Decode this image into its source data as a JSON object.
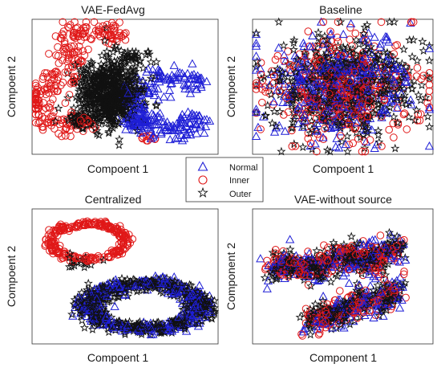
{
  "legend": {
    "placement": "center",
    "entries": [
      {
        "label": "Normal",
        "marker": "triangle",
        "color": "#1f1fd6"
      },
      {
        "label": "Inner",
        "marker": "circle",
        "color": "#e01818"
      },
      {
        "label": "Outer",
        "marker": "star",
        "color": "#111111"
      }
    ]
  },
  "chart_data": [
    {
      "type": "scatter",
      "title": "VAE-FedAvg",
      "xlabel": "Compoent 1",
      "ylabel": "Compoent 2",
      "grid": false,
      "series": [
        {
          "name": "Normal",
          "color": "#1f1fd6",
          "marker": "triangle",
          "clusters": [
            {
              "shape": "arc",
              "cx": 0.74,
              "cy": 0.38,
              "r": 0.2,
              "t0": 0.55,
              "t1": 5.75,
              "spread": 0.045,
              "n": 240
            },
            {
              "shape": "blob",
              "cx": 0.57,
              "cy": 0.24,
              "rx": 0.09,
              "ry": 0.05,
              "n": 40
            }
          ]
        },
        {
          "name": "Inner",
          "color": "#e01818",
          "marker": "circle",
          "clusters": [
            {
              "shape": "arc",
              "cx": 0.34,
              "cy": 0.8,
              "r": 0.15,
              "t0": 0.15,
              "t1": 4.2,
              "spread": 0.045,
              "n": 120
            },
            {
              "shape": "arc",
              "cx": 0.18,
              "cy": 0.38,
              "r": 0.17,
              "t0": 1.2,
              "t1": 5.5,
              "spread": 0.045,
              "n": 150
            },
            {
              "shape": "blob",
              "cx": 0.62,
              "cy": 0.12,
              "rx": 0.05,
              "ry": 0.03,
              "n": 10
            }
          ]
        },
        {
          "name": "Outer",
          "color": "#111111",
          "marker": "star",
          "clusters": [
            {
              "shape": "blob",
              "cx": 0.42,
              "cy": 0.45,
              "rx": 0.17,
              "ry": 0.25,
              "n": 650
            },
            {
              "shape": "blob",
              "cx": 0.25,
              "cy": 0.25,
              "rx": 0.07,
              "ry": 0.06,
              "n": 40
            },
            {
              "shape": "blob",
              "cx": 0.55,
              "cy": 0.72,
              "rx": 0.1,
              "ry": 0.06,
              "n": 30
            }
          ]
        }
      ]
    },
    {
      "type": "scatter",
      "title": "Baseline",
      "xlabel": "Compoent 1",
      "ylabel": "Compoent 2",
      "grid": false,
      "series": [
        {
          "name": "Normal",
          "color": "#1f1fd6",
          "marker": "triangle",
          "clusters": [
            {
              "shape": "blob",
              "cx": 0.5,
              "cy": 0.5,
              "rx": 0.4,
              "ry": 0.38,
              "n": 380
            }
          ]
        },
        {
          "name": "Inner",
          "color": "#e01818",
          "marker": "circle",
          "clusters": [
            {
              "shape": "blob",
              "cx": 0.5,
              "cy": 0.5,
              "rx": 0.4,
              "ry": 0.38,
              "n": 380
            }
          ]
        },
        {
          "name": "Outer",
          "color": "#111111",
          "marker": "star",
          "clusters": [
            {
              "shape": "blob",
              "cx": 0.5,
              "cy": 0.5,
              "rx": 0.41,
              "ry": 0.39,
              "n": 520
            }
          ]
        }
      ]
    },
    {
      "type": "scatter",
      "title": "Centralized",
      "xlabel": "Compoent 1",
      "ylabel": "Compoent 2",
      "grid": false,
      "series": [
        {
          "name": "Normal",
          "color": "#1f1fd6",
          "marker": "triangle",
          "clusters": [
            {
              "shape": "ring",
              "cx": 0.6,
              "cy": 0.28,
              "rx": 0.3,
              "ry": 0.17,
              "spread": 0.07,
              "n": 330
            }
          ]
        },
        {
          "name": "Inner",
          "color": "#e01818",
          "marker": "circle",
          "clusters": [
            {
              "shape": "ring",
              "cx": 0.3,
              "cy": 0.76,
              "rx": 0.2,
              "ry": 0.13,
              "spread": 0.045,
              "n": 260
            }
          ]
        },
        {
          "name": "Outer",
          "color": "#111111",
          "marker": "star",
          "clusters": [
            {
              "shape": "ring",
              "cx": 0.6,
              "cy": 0.28,
              "rx": 0.3,
              "ry": 0.17,
              "spread": 0.075,
              "n": 560
            },
            {
              "shape": "blob",
              "cx": 0.26,
              "cy": 0.6,
              "rx": 0.1,
              "ry": 0.06,
              "n": 18
            }
          ]
        }
      ]
    },
    {
      "type": "scatter",
      "title": "VAE-without source",
      "xlabel": "Component 1",
      "ylabel": "Component 2",
      "grid": false,
      "series": [
        {
          "name": "Normal",
          "color": "#1f1fd6",
          "marker": "triangle",
          "clusters": [
            {
              "shape": "band",
              "x0": 0.1,
              "y0": 0.55,
              "x1": 0.8,
              "y1": 0.68,
              "w": 0.11,
              "n": 200
            },
            {
              "shape": "band",
              "x0": 0.3,
              "y0": 0.15,
              "x1": 0.82,
              "y1": 0.4,
              "w": 0.11,
              "n": 130
            }
          ]
        },
        {
          "name": "Inner",
          "color": "#e01818",
          "marker": "circle",
          "clusters": [
            {
              "shape": "band",
              "x0": 0.1,
              "y0": 0.55,
              "x1": 0.8,
              "y1": 0.68,
              "w": 0.11,
              "n": 220
            },
            {
              "shape": "band",
              "x0": 0.3,
              "y0": 0.15,
              "x1": 0.82,
              "y1": 0.4,
              "w": 0.11,
              "n": 140
            }
          ]
        },
        {
          "name": "Outer",
          "color": "#111111",
          "marker": "star",
          "clusters": [
            {
              "shape": "band",
              "x0": 0.1,
              "y0": 0.55,
              "x1": 0.8,
              "y1": 0.68,
              "w": 0.1,
              "n": 330
            },
            {
              "shape": "band",
              "x0": 0.3,
              "y0": 0.15,
              "x1": 0.82,
              "y1": 0.4,
              "w": 0.1,
              "n": 200
            }
          ]
        }
      ]
    }
  ]
}
